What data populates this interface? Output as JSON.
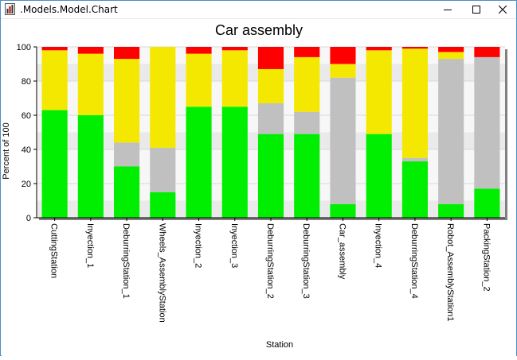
{
  "window": {
    "title": ".Models.Model.Chart",
    "icon": "app-icon",
    "controls": [
      "minimize-icon",
      "maximize-icon",
      "close-icon"
    ]
  },
  "chart_data": {
    "type": "bar",
    "stacked": true,
    "title": "Car assembly",
    "xlabel": "Station",
    "ylabel": "Percent of 100",
    "ylim": [
      0,
      100
    ],
    "yticks": [
      0,
      20,
      40,
      60,
      80,
      100
    ],
    "grid": true,
    "categories": [
      "CuttingStation",
      "Inyection_1",
      "DeburringStation_1",
      "Wheels_AssemblyStation",
      "Inyection_2",
      "Inyection_3",
      "DeburringStation_2",
      "DeburringStation_3",
      "Car_assembly",
      "Inyection_4",
      "DeburringStation_4",
      "Robot_AssemblyStation1",
      "PackingStation_2"
    ],
    "series": [
      {
        "color": "#00ee00",
        "values": [
          63,
          60,
          30,
          15,
          65,
          65,
          49,
          49,
          8,
          49,
          33,
          8,
          17
        ]
      },
      {
        "color": "#c0c0c0",
        "values": [
          0,
          0,
          14,
          26,
          0,
          0,
          18,
          13,
          74,
          0,
          2,
          85,
          77
        ]
      },
      {
        "color": "#f5e800",
        "values": [
          35,
          36,
          49,
          59,
          31,
          33,
          20,
          32,
          8,
          49,
          64,
          4,
          0
        ]
      },
      {
        "color": "#ff0000",
        "values": [
          2,
          4,
          7,
          0,
          4,
          2,
          13,
          6,
          10,
          2,
          1,
          3,
          6
        ]
      }
    ]
  }
}
